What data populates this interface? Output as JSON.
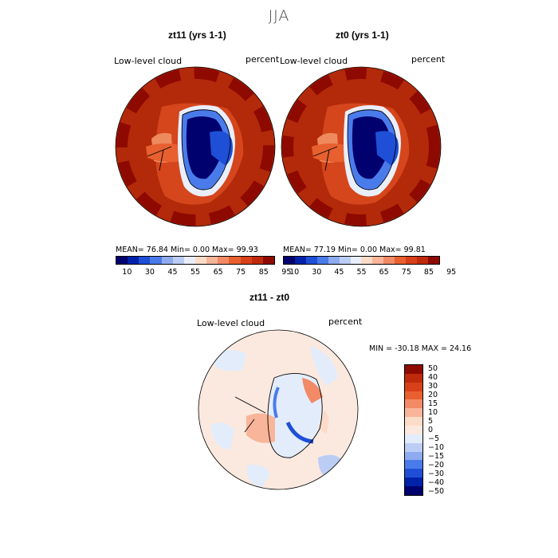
{
  "figure": {
    "season": "JJA"
  },
  "panels": [
    {
      "title": "zt11 (yrs 1-1)",
      "field": "Low-level cloud",
      "units": "percent",
      "stats": "MEAN=   76.84   Min=    0.00   Max=   99.93"
    },
    {
      "title": "zt0 (yrs 1-1)",
      "field": "Low-level cloud",
      "units": "percent",
      "stats": "MEAN=   77.19   Min=    0.00   Max=   99.81"
    }
  ],
  "diff": {
    "title": "zt11 - zt0",
    "field": "Low-level cloud",
    "units": "percent",
    "minmax": "MIN = -30.18  MAX =   24.16"
  },
  "colorbar_abs": {
    "labels": [
      "10",
      "30",
      "45",
      "55",
      "65",
      "75",
      "85",
      "95"
    ],
    "colors": [
      "#00006e",
      "#0022aa",
      "#1f4fd6",
      "#4a7bea",
      "#8eabf0",
      "#bccdf5",
      "#e9eefb",
      "#fcdcc8",
      "#f8b59a",
      "#f28a66",
      "#e8602f",
      "#d8401a",
      "#c02a0c",
      "#8e0a00"
    ]
  },
  "colorbar_diff": {
    "labels": [
      "50",
      "40",
      "30",
      "20",
      "15",
      "10",
      "5",
      "0",
      "−5",
      "−10",
      "−15",
      "−20",
      "−30",
      "−40",
      "−50"
    ],
    "colors": [
      "#8e0a00",
      "#c02a0c",
      "#d8401a",
      "#e8602f",
      "#f28a66",
      "#f8b59a",
      "#fcdcc8",
      "#fbe9df",
      "#e3ecfb",
      "#bccdf5",
      "#8eabf0",
      "#4a7bea",
      "#1f4fd6",
      "#0022aa",
      "#00006e"
    ]
  }
}
